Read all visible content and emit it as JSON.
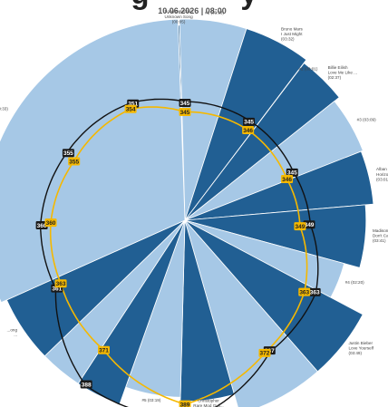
{
  "header": {
    "title_fragment": "g           y",
    "timestamp": "10.06.2026 | 08:00"
  },
  "colors": {
    "light_segment": "#a6c8e6",
    "dark_segment": "#215f93",
    "black_ring": "#111111",
    "yellow_ring": "#f5b800",
    "badge_yellow": "#f5b800",
    "badge_dark": "#1a1a1a"
  },
  "chart_data": {
    "type": "polar-bar",
    "segments": [
      {
        "label": [
          "Song Detection",
          "Unknown Song",
          "(00:05)"
        ],
        "duration_sec": 5,
        "radius": 0.97,
        "shade": "dark"
      },
      {
        "label": [
          "#1 (03:33)"
        ],
        "duration_sec": 213,
        "radius": 1.0,
        "shade": "light"
      },
      {
        "label": [
          "Bruno Mars",
          "I Just Might",
          "(03:32)"
        ],
        "duration_sec": 212,
        "radius": 1.0,
        "shade": "dark"
      },
      {
        "label": [
          "#2 (00:01)"
        ],
        "duration_sec": 1,
        "radius": 0.9,
        "shade": "light"
      },
      {
        "label": [
          "Billie Eilish",
          "Love Me Like ...",
          "(02:37)"
        ],
        "duration_sec": 157,
        "radius": 0.98,
        "shade": "dark"
      },
      {
        "label": [
          "#3 (03:09)"
        ],
        "duration_sec": 189,
        "radius": 0.95,
        "shade": "light"
      },
      {
        "label": [
          "Alban He...",
          "Horizons",
          "(03:01)"
        ],
        "duration_sec": 181,
        "radius": 0.94,
        "shade": "dark"
      },
      {
        "label": [
          "Madison Avenue",
          "Don't Call M...",
          "(03:41)"
        ],
        "duration_sec": 221,
        "radius": 0.9,
        "shade": "dark"
      },
      {
        "label": [
          "#4 (02:20)"
        ],
        "duration_sec": 140,
        "radius": 0.82,
        "shade": "light"
      },
      {
        "label": [
          "Justin Bieber",
          "Love Yourself",
          "(03:49)"
        ],
        "duration_sec": 229,
        "radius": 1.0,
        "shade": "dark"
      },
      {
        "label": [],
        "duration_sec": 280,
        "radius": 1.0,
        "shade": "light"
      },
      {
        "label": [
          "Christopher",
          "Rare Mod Gull...",
          "(03:10)"
        ],
        "duration_sec": 190,
        "radius": 0.9,
        "shade": "dark"
      },
      {
        "label": [
          "#5 (03:19)"
        ],
        "duration_sec": 199,
        "radius": 0.88,
        "shade": "light"
      },
      {
        "label": [],
        "duration_sec": 150,
        "radius": 0.97,
        "shade": "dark"
      },
      {
        "label": [],
        "duration_sec": 140,
        "radius": 0.97,
        "shade": "light"
      },
      {
        "label": [
          "...ong",
          "..."
        ],
        "duration_sec": 220,
        "radius": 0.97,
        "shade": "dark"
      },
      {
        "label": [
          "#6 (20:33)"
        ],
        "duration_sec": 1233,
        "radius": 1.0,
        "shade": "light"
      }
    ],
    "black_ring_markers": [
      {
        "value": "345",
        "angle_deg": 0
      },
      {
        "value": "345",
        "angle_deg": 33
      },
      {
        "value": "345",
        "angle_deg": 66
      },
      {
        "value": "349",
        "angle_deg": 92
      },
      {
        "value": "363",
        "angle_deg": 119
      },
      {
        "value": "367",
        "angle_deg": 147
      },
      {
        "value": "392",
        "angle_deg": 178
      },
      {
        "value": "388",
        "angle_deg": 211
      },
      {
        "value": "361",
        "angle_deg": 242
      },
      {
        "value": "360",
        "angle_deg": 268
      },
      {
        "value": "355",
        "angle_deg": 300
      },
      {
        "value": "351",
        "angle_deg": 336
      }
    ],
    "yellow_ring_markers": [
      {
        "value": "345",
        "angle_deg": 0
      },
      {
        "value": "346",
        "angle_deg": 35
      },
      {
        "value": "346",
        "angle_deg": 68
      },
      {
        "value": "349",
        "angle_deg": 93
      },
      {
        "value": "363",
        "angle_deg": 121
      },
      {
        "value": "372",
        "angle_deg": 149
      },
      {
        "value": "389",
        "angle_deg": 180
      },
      {
        "value": "371",
        "angle_deg": 212
      },
      {
        "value": "363",
        "angle_deg": 243
      },
      {
        "value": "360",
        "angle_deg": 269
      },
      {
        "value": "355",
        "angle_deg": 298
      },
      {
        "value": "354",
        "angle_deg": 334
      }
    ]
  }
}
